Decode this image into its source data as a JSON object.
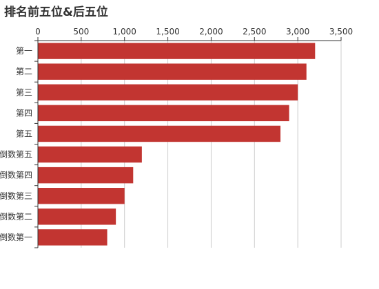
{
  "chart_data": {
    "type": "bar",
    "orientation": "horizontal",
    "title": "排名前五位&后五位",
    "xlabel": "",
    "ylabel": "",
    "xlim": [
      0,
      3500
    ],
    "x_ticks": [
      0,
      500,
      1000,
      1500,
      2000,
      2500,
      3000,
      3500
    ],
    "x_tick_labels": [
      "0",
      "500",
      "1,000",
      "1,500",
      "2,000",
      "2,500",
      "3,000",
      "3,500"
    ],
    "x_axis_position": "top",
    "grid": "vertical",
    "categories": [
      "第一",
      "第二",
      "第三",
      "第四",
      "第五",
      "倒数第五",
      "倒数第四",
      "倒数第三",
      "倒数第二",
      "倒数第一"
    ],
    "values": [
      3200,
      3100,
      3000,
      2900,
      2800,
      1200,
      1100,
      1000,
      900,
      800
    ],
    "bar_color": "#c23531"
  }
}
